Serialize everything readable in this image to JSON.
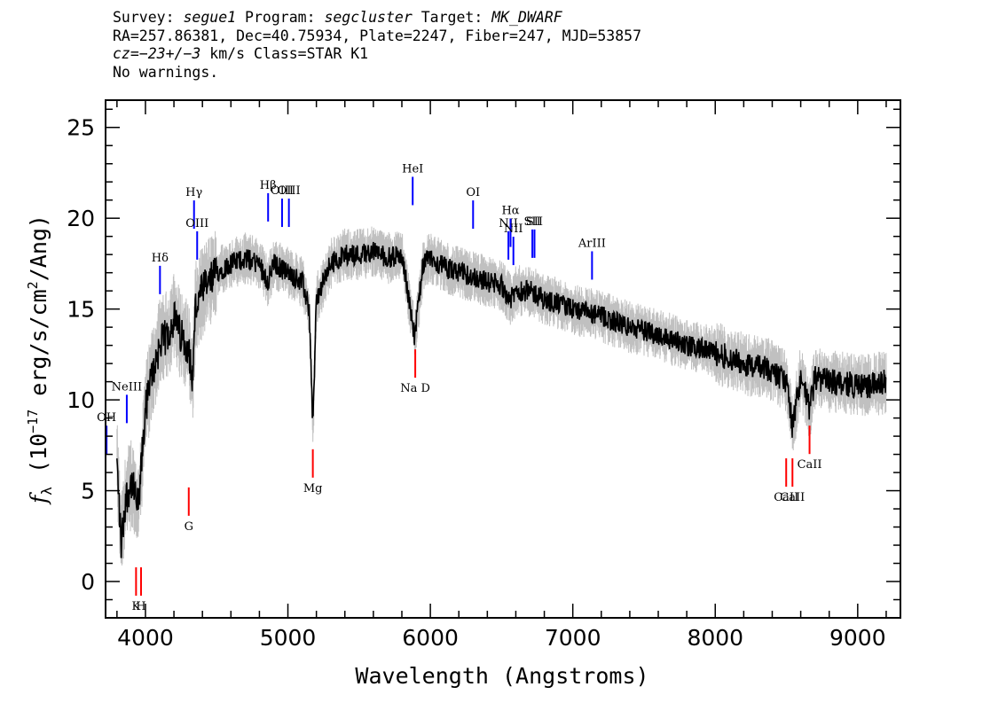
{
  "header": {
    "line1": {
      "survey_label": "Survey: ",
      "survey": "segue1",
      "program_label": " Program: ",
      "program": "segcluster",
      "target_label": " Target: ",
      "target": "MK_DWARF"
    },
    "line2": "RA=257.86381, Dec=40.75934, Plate=2247, Fiber=247, MJD=53857",
    "line3": {
      "cz_label": "cz=",
      "cz_value": "−23+/−3",
      "cz_rest": " km/s Class=STAR K1"
    },
    "line4": "No warnings."
  },
  "colors": {
    "flux": "#000000",
    "error": "#c0c0c0",
    "emission": "#0000ff",
    "absorption": "#ff0000",
    "frame": "#000000"
  },
  "chart_data": {
    "type": "line",
    "xlabel": "Wavelength (Angstroms)",
    "ylabel": "fλ (10⁻¹⁷ erg/s/cm²/Ang)",
    "xlim": [
      3720,
      9300
    ],
    "ylim": [
      -2,
      26.5
    ],
    "x_ticks": [
      4000,
      5000,
      6000,
      7000,
      8000,
      9000
    ],
    "y_ticks": [
      0,
      5,
      10,
      15,
      20,
      25
    ],
    "grid": false,
    "series": [
      {
        "x": [
          3800,
          3830,
          3860,
          3900,
          3950,
          4000,
          4050,
          4100,
          4150,
          4200,
          4250,
          4300,
          4330,
          4350,
          4400,
          4450,
          4500,
          4600,
          4700,
          4800,
          4860,
          4900,
          5000,
          5100,
          5150,
          5175,
          5200,
          5300,
          5400,
          5500,
          5600,
          5700,
          5800,
          5890,
          5950,
          6000,
          6100,
          6200,
          6300,
          6400,
          6500,
          6563,
          6600,
          6700,
          6800,
          6900,
          7000,
          7100,
          7200,
          7300,
          7400,
          7500,
          7600,
          7700,
          7800,
          7900,
          8000,
          8100,
          8200,
          8300,
          8400,
          8500,
          8542,
          8600,
          8662,
          8700,
          8800,
          8900,
          9000,
          9100,
          9200
        ],
        "y": [
          6.5,
          2.0,
          4.5,
          5.5,
          4.0,
          9.5,
          11.5,
          13.0,
          13.5,
          14.5,
          13.5,
          13.0,
          11.0,
          15.0,
          16.0,
          16.5,
          17.0,
          17.5,
          17.8,
          17.5,
          16.5,
          17.5,
          17.0,
          16.5,
          15.0,
          8.5,
          15.5,
          17.5,
          18.0,
          18.0,
          18.2,
          17.8,
          18.0,
          13.5,
          17.5,
          17.8,
          17.3,
          17.0,
          16.8,
          16.5,
          16.3,
          15.5,
          16.0,
          16.0,
          15.5,
          15.3,
          15.0,
          14.8,
          14.6,
          14.3,
          14.0,
          13.8,
          13.6,
          13.3,
          13.0,
          12.8,
          12.6,
          12.3,
          12.0,
          11.8,
          11.6,
          11.0,
          8.5,
          11.3,
          9.5,
          11.2,
          11.0,
          10.9,
          10.8,
          10.8,
          11.0
        ]
      }
    ],
    "emission_lines": [
      {
        "label": "OH",
        "wavelength": 3727,
        "y": 7.8
      },
      {
        "label": "NeIII",
        "wavelength": 3869,
        "y": 9.5
      },
      {
        "label": "Hδ",
        "wavelength": 4102,
        "y": 16.6
      },
      {
        "label": "Hγ",
        "wavelength": 4341,
        "y": 20.2
      },
      {
        "label": "OIII",
        "wavelength": 4363,
        "y": 18.5
      },
      {
        "label": "Hβ",
        "wavelength": 4861,
        "y": 20.6
      },
      {
        "label": "OIII",
        "wavelength": 4959,
        "y": 20.3
      },
      {
        "label": "OIII",
        "wavelength": 5007,
        "y": 20.3
      },
      {
        "label": "HeI",
        "wavelength": 5876,
        "y": 21.5
      },
      {
        "label": "OI",
        "wavelength": 6300,
        "y": 20.2
      },
      {
        "label": "NII",
        "wavelength": 6548,
        "y": 18.5
      },
      {
        "label": "Hα",
        "wavelength": 6563,
        "y": 19.2
      },
      {
        "label": "NII",
        "wavelength": 6583,
        "y": 18.2
      },
      {
        "label": "SII",
        "wavelength": 6716,
        "y": 18.6
      },
      {
        "label": "SII",
        "wavelength": 6731,
        "y": 18.6
      },
      {
        "label": "ArIII",
        "wavelength": 7135,
        "y": 17.4
      }
    ],
    "absorption_lines": [
      {
        "label": "K",
        "wavelength": 3934,
        "y": 0.0
      },
      {
        "label": "H",
        "wavelength": 3969,
        "y": 0.0
      },
      {
        "label": "G",
        "wavelength": 4304,
        "y": 4.4
      },
      {
        "label": "Mg",
        "wavelength": 5175,
        "y": 6.5
      },
      {
        "label": "Na D",
        "wavelength": 5894,
        "y": 12.0
      },
      {
        "label": "CaII",
        "wavelength": 8498,
        "y": 6.0
      },
      {
        "label": "CaII",
        "wavelength": 8542,
        "y": 6.0
      },
      {
        "label": "CaII",
        "wavelength": 8662,
        "y": 7.8
      }
    ]
  }
}
